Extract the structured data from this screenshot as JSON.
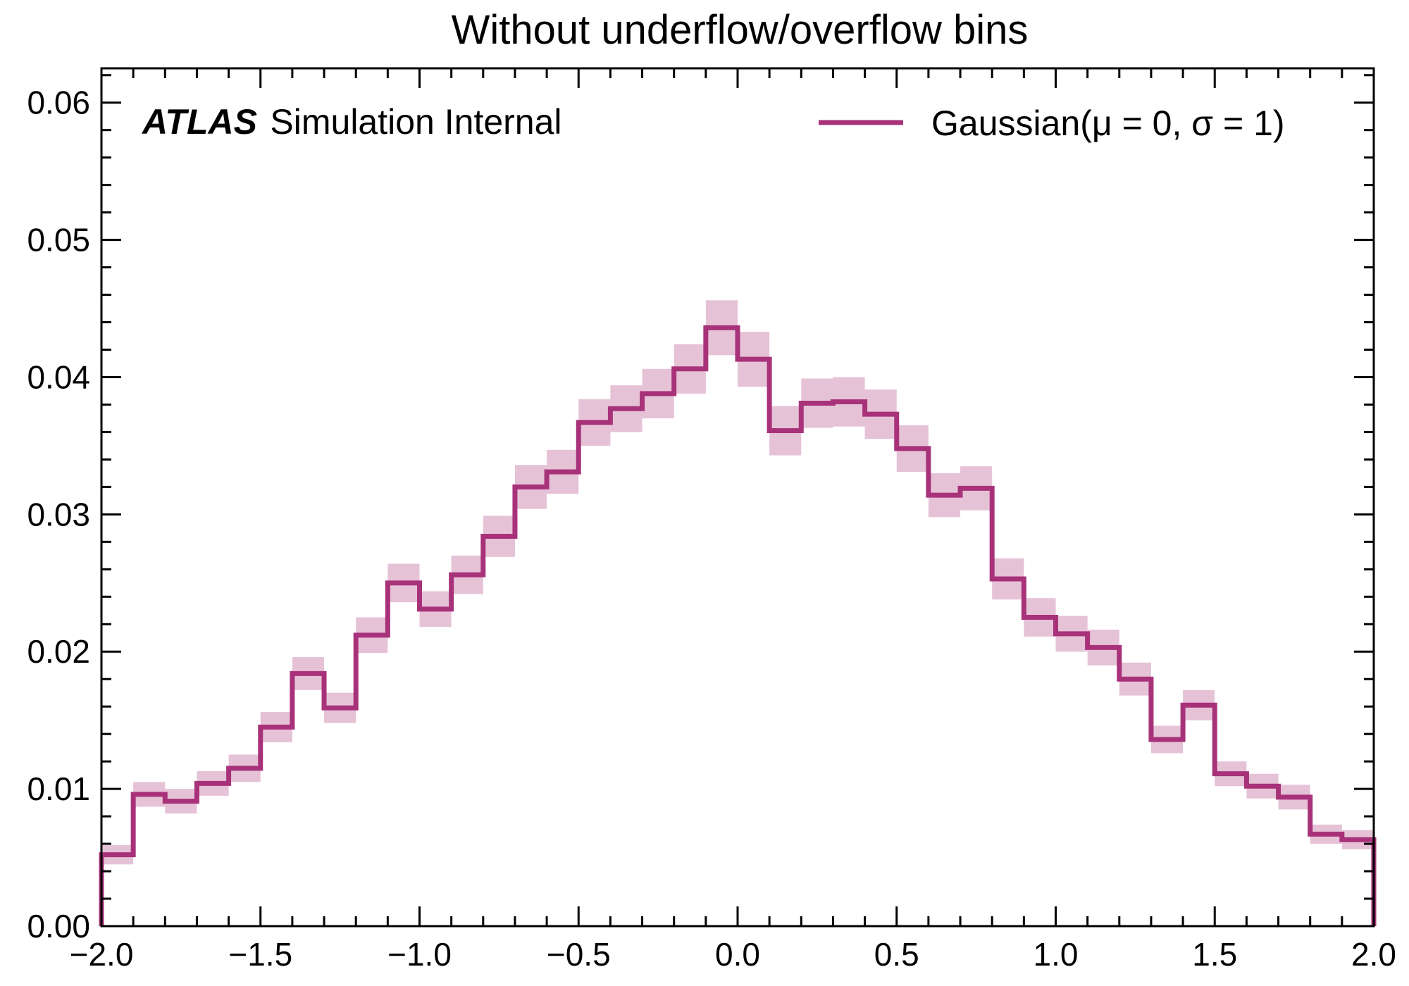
{
  "chart_data": {
    "type": "histogram",
    "title": "Without underflow/overflow bins",
    "experiment_label": "ATLAS",
    "experiment_sublabel": "Simulation Internal",
    "legend_position": "top-right",
    "grid": false,
    "xlim": [
      -2.0,
      2.0
    ],
    "ylim": [
      0.0,
      0.0625
    ],
    "x_ticks": [
      -2.0,
      -1.5,
      -1.0,
      -0.5,
      0.0,
      0.5,
      1.0,
      1.5,
      2.0
    ],
    "x_tick_labels": [
      "−2.0",
      "−1.5",
      "−1.0",
      "−0.5",
      "0.0",
      "0.5",
      "1.0",
      "1.5",
      "2.0"
    ],
    "y_ticks": [
      0.0,
      0.01,
      0.02,
      0.03,
      0.04,
      0.05,
      0.06
    ],
    "y_tick_labels": [
      "0.00",
      "0.01",
      "0.02",
      "0.03",
      "0.04",
      "0.05",
      "0.06"
    ],
    "bin_edges": [
      -2.0,
      -1.9,
      -1.8,
      -1.7,
      -1.6,
      -1.5,
      -1.4,
      -1.3,
      -1.2,
      -1.1,
      -1.0,
      -0.9,
      -0.8,
      -0.7,
      -0.6,
      -0.5,
      -0.4,
      -0.3,
      -0.2,
      -0.1,
      0.0,
      0.1,
      0.2,
      0.3,
      0.4,
      0.5,
      0.6,
      0.7,
      0.8,
      0.9,
      1.0,
      1.1,
      1.2,
      1.3,
      1.4,
      1.5,
      1.6,
      1.7,
      1.8,
      1.9,
      2.0
    ],
    "series": [
      {
        "name": "Gaussian(μ = 0, σ = 1)",
        "color": "#a8327a",
        "band_color": "#e6c2d7",
        "values": [
          0.0052,
          0.0096,
          0.0091,
          0.0104,
          0.0115,
          0.0145,
          0.0184,
          0.0159,
          0.0212,
          0.025,
          0.0231,
          0.0256,
          0.0284,
          0.032,
          0.0331,
          0.0367,
          0.0377,
          0.0388,
          0.0406,
          0.0436,
          0.0413,
          0.0361,
          0.0381,
          0.0382,
          0.0373,
          0.0348,
          0.0314,
          0.0319,
          0.0253,
          0.0225,
          0.0213,
          0.0203,
          0.018,
          0.0136,
          0.0161,
          0.0111,
          0.0102,
          0.0094,
          0.0067,
          0.0063
        ],
        "errors": [
          0.0007,
          0.0009,
          0.0009,
          0.0009,
          0.001,
          0.0011,
          0.0012,
          0.0011,
          0.0013,
          0.0014,
          0.0013,
          0.0014,
          0.0015,
          0.0016,
          0.0016,
          0.0017,
          0.0017,
          0.0018,
          0.0018,
          0.002,
          0.002,
          0.0018,
          0.0018,
          0.0018,
          0.0018,
          0.0017,
          0.0016,
          0.0016,
          0.0015,
          0.0014,
          0.0013,
          0.0013,
          0.0012,
          0.001,
          0.0011,
          0.0009,
          0.0009,
          0.0009,
          0.0007,
          0.0007
        ]
      }
    ]
  }
}
